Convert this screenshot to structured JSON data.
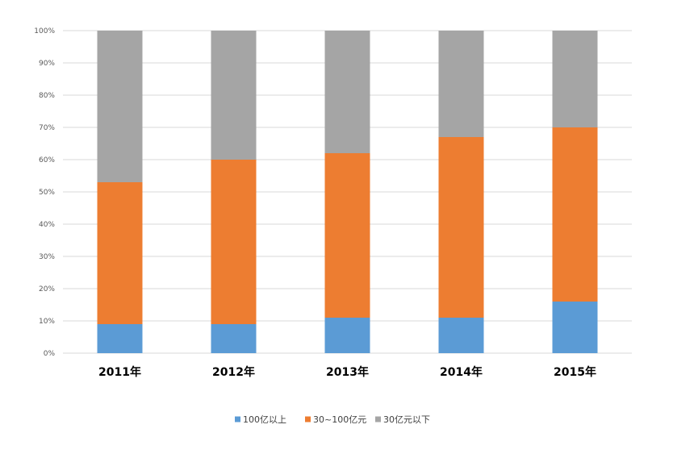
{
  "chart_data": {
    "type": "bar",
    "stacked": true,
    "percent_stacked": true,
    "categories": [
      "2011年",
      "2012年",
      "2013年",
      "2014年",
      "2015年"
    ],
    "series": [
      {
        "name": "100亿以上",
        "color": "#5b9bd5",
        "values": [
          9,
          9,
          11,
          11,
          16
        ]
      },
      {
        "name": "30~100亿元",
        "color": "#ed7d31",
        "values": [
          44,
          51,
          51,
          56,
          54
        ]
      },
      {
        "name": "30亿元以下",
        "color": "#a5a5a5",
        "values": [
          47,
          40,
          38,
          33,
          30
        ]
      }
    ],
    "ylim": [
      0,
      100
    ],
    "yticks": [
      "0%",
      "10%",
      "20%",
      "30%",
      "40%",
      "50%",
      "60%",
      "70%",
      "80%",
      "90%",
      "100%"
    ],
    "grid": true,
    "legend_position": "bottom"
  }
}
